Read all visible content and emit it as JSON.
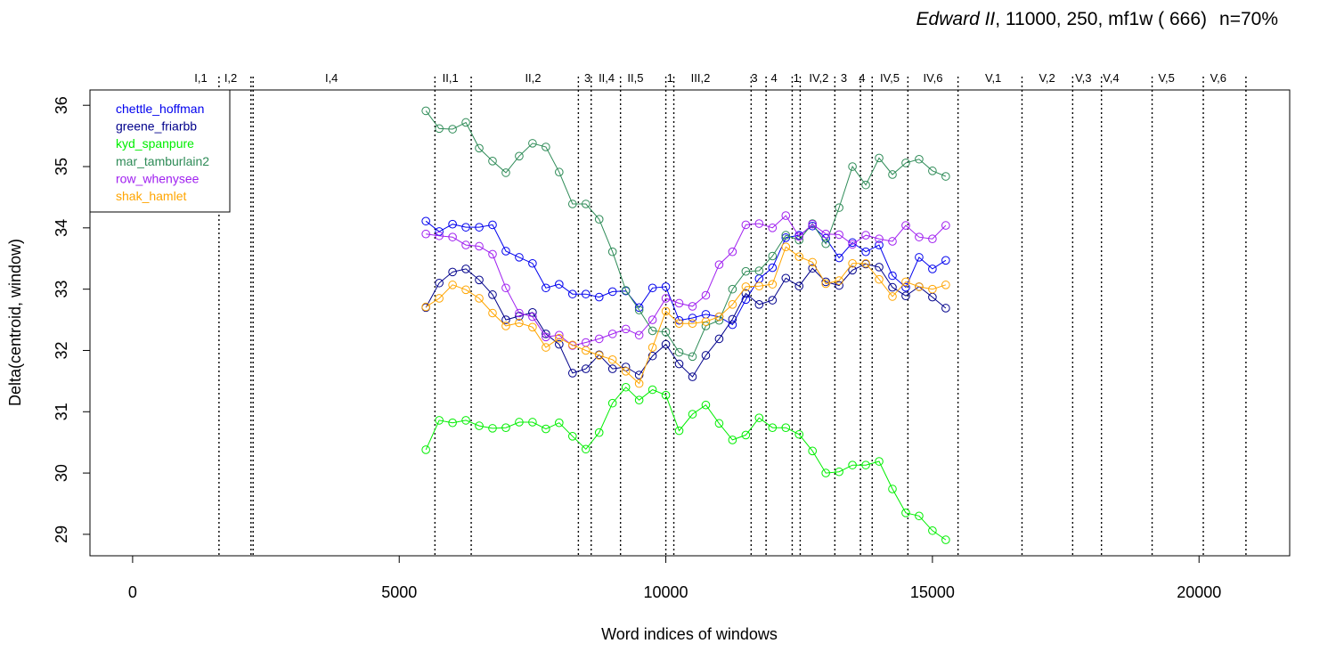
{
  "chart_data": {
    "type": "line",
    "title_italic": "Edward II",
    "title_rest": ", 11000, 250, mf1w ( 666)",
    "title_n": "n=70%",
    "xlabel": "Word indices of windows",
    "ylabel": "Delta(centroid, window)",
    "xlim": [
      -800,
      21700
    ],
    "ylim": [
      28.65,
      36.25
    ],
    "x_ticks": [
      0,
      5000,
      10000,
      15000,
      20000
    ],
    "x_tick_labels": [
      "0",
      "5000",
      "10000",
      "15000",
      "20000"
    ],
    "y_ticks": [
      29,
      30,
      31,
      32,
      33,
      34,
      35,
      36
    ],
    "y_tick_labels": [
      "29",
      "30",
      "31",
      "32",
      "33",
      "34",
      "35",
      "36"
    ],
    "grid": false,
    "legend_position": "top-left",
    "scene_boundaries": [
      1620,
      2220,
      2260,
      5670,
      6350,
      8360,
      8600,
      9150,
      10000,
      10150,
      11600,
      11880,
      12370,
      12520,
      13170,
      13650,
      13870,
      14540,
      15480,
      16680,
      17630,
      18170,
      19120,
      20080,
      20880
    ],
    "scene_labels": [
      {
        "text": "I,1",
        "x": 1280
      },
      {
        "text": "I,2",
        "x": 1840
      },
      {
        "text": "I,4",
        "x": 3730
      },
      {
        "text": "II,1",
        "x": 5960
      },
      {
        "text": "II,2",
        "x": 7510
      },
      {
        "text": "3",
        "x": 8530
      },
      {
        "text": "II,4",
        "x": 8890
      },
      {
        "text": "II,5",
        "x": 9430
      },
      {
        "text": "1",
        "x": 10080
      },
      {
        "text": "III,2",
        "x": 10650
      },
      {
        "text": "3",
        "x": 11660
      },
      {
        "text": "4",
        "x": 12030
      },
      {
        "text": "1",
        "x": 12450
      },
      {
        "text": "IV,2",
        "x": 12870
      },
      {
        "text": "3",
        "x": 13340
      },
      {
        "text": "4",
        "x": 13680
      },
      {
        "text": "IV,5",
        "x": 14200
      },
      {
        "text": "IV,6",
        "x": 15010
      },
      {
        "text": "V,1",
        "x": 16140
      },
      {
        "text": "V,2",
        "x": 17150
      },
      {
        "text": "V,3",
        "x": 17830
      },
      {
        "text": "V,4",
        "x": 18350
      },
      {
        "text": "V,5",
        "x": 19390
      },
      {
        "text": "V,6",
        "x": 20360
      }
    ],
    "x": [
      5500,
      5750,
      6000,
      6250,
      6500,
      6750,
      7000,
      7250,
      7500,
      7750,
      8000,
      8250,
      8500,
      8750,
      9000,
      9250,
      9500,
      9750,
      10000,
      10250,
      10500,
      10750,
      11000,
      11250,
      11500,
      11750,
      12000,
      12250,
      12500,
      12750,
      13000,
      13250,
      13500,
      13750,
      14000,
      14250,
      14500,
      14750,
      15000,
      15250
    ],
    "series": [
      {
        "name": "chettle_hoffman",
        "color": "#0000ee",
        "values": [
          34.11,
          33.94,
          34.06,
          34.01,
          34.01,
          34.05,
          33.62,
          33.52,
          33.42,
          33.02,
          33.08,
          32.92,
          32.92,
          32.87,
          32.96,
          32.97,
          32.7,
          33.02,
          33.04,
          32.49,
          32.53,
          32.59,
          32.55,
          32.42,
          32.83,
          33.17,
          33.35,
          33.84,
          33.88,
          34.03,
          33.83,
          33.51,
          33.76,
          33.61,
          33.72,
          33.22,
          33.03,
          33.52,
          33.33,
          33.47
        ]
      },
      {
        "name": "greene_friarbb",
        "color": "#00008b",
        "values": [
          32.7,
          33.1,
          33.28,
          33.33,
          33.15,
          32.91,
          32.5,
          32.56,
          32.62,
          32.27,
          32.1,
          31.63,
          31.7,
          31.93,
          31.7,
          31.73,
          31.6,
          31.91,
          32.1,
          31.78,
          31.57,
          31.92,
          32.19,
          32.51,
          32.93,
          32.75,
          32.82,
          33.18,
          33.05,
          33.34,
          33.12,
          33.06,
          33.31,
          33.41,
          33.36,
          33.03,
          32.89,
          33.04,
          32.87,
          32.69
        ]
      },
      {
        "name": "kyd_spanpure",
        "color": "#00ee00",
        "values": [
          30.38,
          30.86,
          30.82,
          30.86,
          30.77,
          30.73,
          30.74,
          30.83,
          30.83,
          30.72,
          30.82,
          30.6,
          30.39,
          30.66,
          31.14,
          31.4,
          31.19,
          31.36,
          31.27,
          30.69,
          30.96,
          31.11,
          30.81,
          30.54,
          30.62,
          30.9,
          30.74,
          30.74,
          30.63,
          30.36,
          30.0,
          30.02,
          30.13,
          30.13,
          30.19,
          29.74,
          29.35,
          29.3,
          29.06,
          28.91
        ]
      },
      {
        "name": "mar_tamburlain2",
        "color": "#2e8b57",
        "values": [
          35.91,
          35.62,
          35.61,
          35.72,
          35.3,
          35.09,
          34.9,
          35.17,
          35.38,
          35.32,
          34.91,
          34.39,
          34.39,
          34.14,
          33.61,
          32.98,
          32.66,
          32.32,
          32.3,
          31.97,
          31.9,
          32.4,
          32.49,
          33.0,
          33.29,
          33.3,
          33.54,
          33.88,
          33.8,
          34.07,
          33.74,
          34.33,
          35.0,
          34.7,
          35.14,
          34.87,
          35.06,
          35.12,
          34.93,
          34.84
        ]
      },
      {
        "name": "row_whenysee",
        "color": "#a020f0",
        "values": [
          33.9,
          33.87,
          33.85,
          33.72,
          33.7,
          33.57,
          33.02,
          32.61,
          32.55,
          32.22,
          32.25,
          32.08,
          32.13,
          32.19,
          32.27,
          32.35,
          32.25,
          32.5,
          32.85,
          32.77,
          32.72,
          32.9,
          33.4,
          33.61,
          34.05,
          34.07,
          34.0,
          34.2,
          33.86,
          34.06,
          33.9,
          33.89,
          33.73,
          33.88,
          33.82,
          33.78,
          34.04,
          33.85,
          33.82,
          34.04
        ]
      },
      {
        "name": "shak_hamlet",
        "color": "#ffa500",
        "values": [
          32.71,
          32.85,
          33.07,
          32.99,
          32.85,
          32.61,
          32.4,
          32.45,
          32.38,
          32.05,
          32.2,
          32.09,
          32.0,
          31.92,
          31.85,
          31.66,
          31.46,
          32.05,
          32.64,
          32.44,
          32.44,
          32.47,
          32.55,
          32.75,
          33.04,
          33.05,
          33.08,
          33.69,
          33.53,
          33.44,
          33.09,
          33.14,
          33.42,
          33.42,
          33.16,
          32.88,
          33.12,
          33.04,
          33.0,
          33.07
        ]
      }
    ]
  }
}
